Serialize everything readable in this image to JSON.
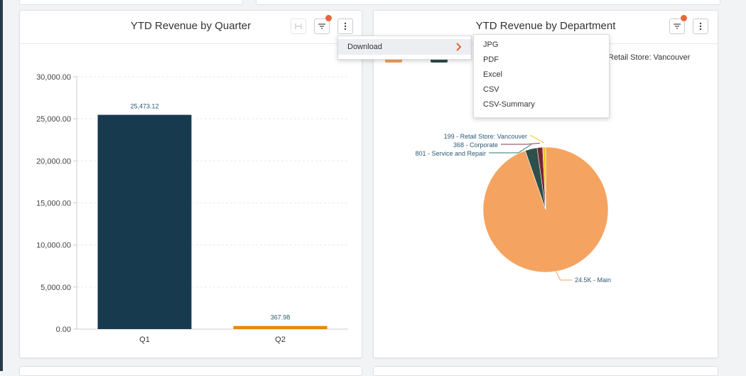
{
  "left_card": {
    "title": "YTD Revenue by Quarter"
  },
  "right_card": {
    "title": "YTD Revenue by Department",
    "legend_partial_label": "Retail Store: Vancouver"
  },
  "context_menu": {
    "item": "Download"
  },
  "download_submenu": {
    "items": [
      "JPG",
      "PDF",
      "Excel",
      "CSV",
      "CSV-Summary"
    ]
  },
  "icons": {
    "expand": "expand-horizontal-icon",
    "filter": "filter-icon",
    "more": "more-vertical-icon",
    "chevron": "chevron-right-icon"
  },
  "colors": {
    "q1_bar": "#173a4f",
    "q2_bar": "#e8860c",
    "notification_dot": "#e8663a",
    "main_slice": "#f4a460",
    "service_slice": "#2e4f4a",
    "corporate_slice": "#7a2432",
    "retail_slice": "#f0c419"
  },
  "chart_data": [
    {
      "type": "bar",
      "title": "YTD Revenue by Quarter",
      "categories": [
        "Q1",
        "Q2"
      ],
      "values": [
        25473.12,
        367.98
      ],
      "value_labels": [
        "25,473.12",
        "367.98"
      ],
      "y_ticks": [
        "0.00",
        "5,000.00",
        "10,000.00",
        "15,000.00",
        "20,000.00",
        "25,000.00",
        "30,000.00"
      ],
      "ylim": [
        0,
        30000
      ],
      "grid": true
    },
    {
      "type": "pie",
      "title": "YTD Revenue by Department",
      "slices": [
        {
          "name": "Main",
          "value": 24500,
          "label": "24.5K - Main"
        },
        {
          "name": "Service and Repair",
          "value": 801,
          "label": "801 - Service and Repair"
        },
        {
          "name": "Corporate",
          "value": 368,
          "label": "368 - Corporate"
        },
        {
          "name": "Retail Store: Vancouver",
          "value": 199,
          "label": "199 - Retail Store: Vancouver"
        }
      ],
      "legend_placement": "top"
    }
  ]
}
